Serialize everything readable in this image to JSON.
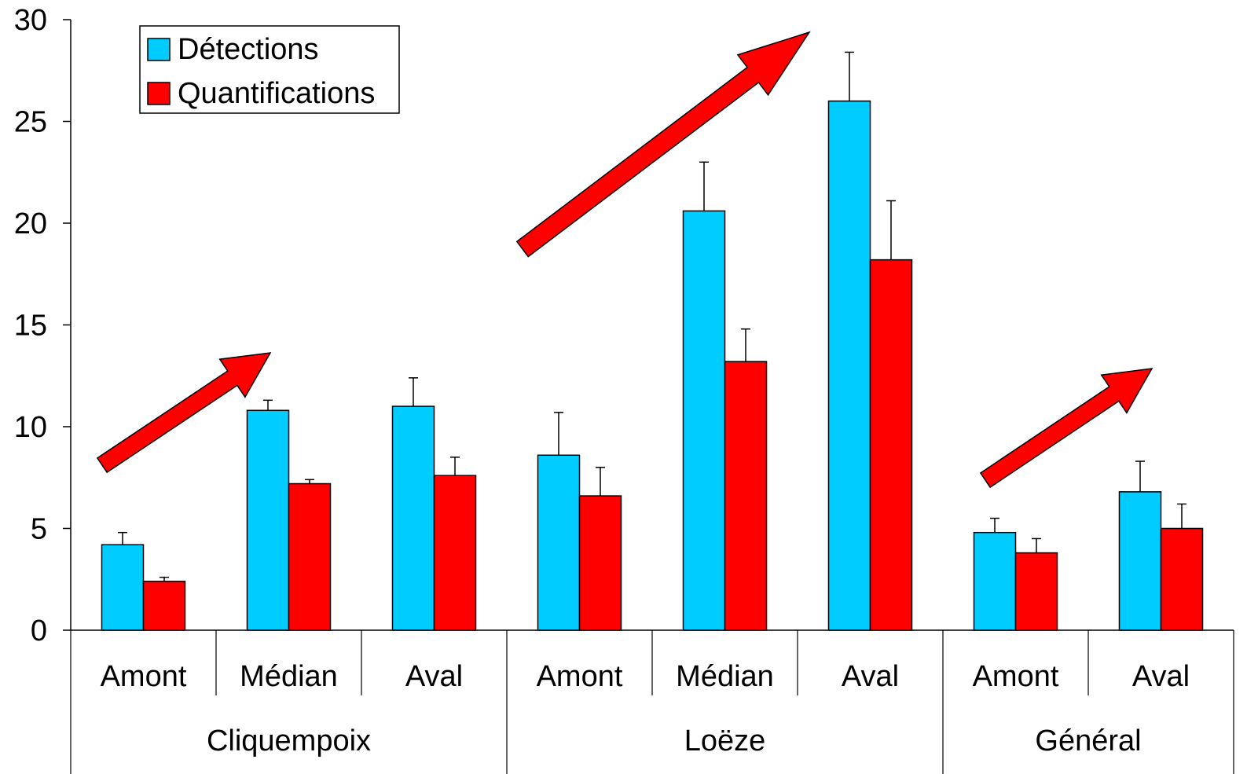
{
  "chart_data": {
    "type": "bar",
    "title": "",
    "xlabel": "",
    "ylabel": "",
    "ylim": [
      0,
      30
    ],
    "yticks": [
      0,
      5,
      10,
      15,
      20,
      25,
      30
    ],
    "grid": false,
    "legend_position": "top-left",
    "groups": [
      {
        "label": "Cliquempoix",
        "categories": [
          "Amont",
          "Médian",
          "Aval"
        ]
      },
      {
        "label": "Loëze",
        "categories": [
          "Amont",
          "Médian",
          "Aval"
        ]
      },
      {
        "label": "Général",
        "categories": [
          "Amont",
          "Aval"
        ]
      }
    ],
    "categories": [
      "Amont",
      "Médian",
      "Aval",
      "Amont",
      "Médian",
      "Aval",
      "Amont",
      "Aval"
    ],
    "series": [
      {
        "name": "Détections",
        "color": "#00CCFF",
        "values": [
          4.2,
          10.8,
          11.0,
          8.6,
          20.6,
          26.0,
          4.8,
          6.8
        ],
        "error": [
          0.6,
          0.5,
          1.4,
          2.1,
          2.4,
          2.4,
          0.7,
          1.5
        ]
      },
      {
        "name": "Quantifications",
        "color": "#FF0000",
        "values": [
          2.4,
          7.2,
          7.6,
          6.6,
          13.2,
          18.2,
          3.8,
          5.0
        ],
        "error": [
          0.2,
          0.2,
          0.9,
          1.4,
          1.6,
          2.9,
          0.7,
          1.2
        ]
      }
    ],
    "annotations": [
      {
        "type": "trend-arrow",
        "group": "Cliquempoix",
        "color": "#FF0000"
      },
      {
        "type": "trend-arrow",
        "group": "Loëze",
        "color": "#FF0000"
      },
      {
        "type": "trend-arrow",
        "group": "Général",
        "color": "#FF0000"
      }
    ]
  }
}
